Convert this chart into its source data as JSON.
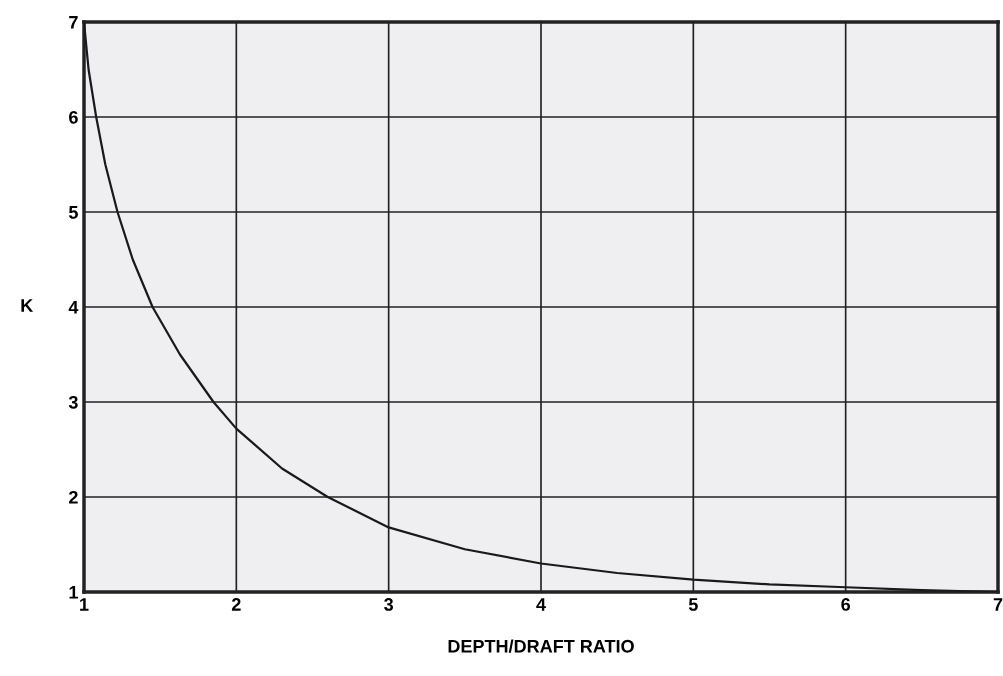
{
  "chart_data": {
    "type": "line",
    "xlabel": "DEPTH/DRAFT RATIO",
    "ylabel": "K",
    "x": [
      1,
      1.03,
      1.08,
      1.14,
      1.22,
      1.32,
      1.45,
      1.63,
      1.85,
      2,
      2.3,
      2.6,
      3,
      3.5,
      4,
      4.5,
      5,
      5.5,
      6,
      6.5,
      7
    ],
    "series": [
      {
        "color": "#1a1a1a",
        "values": [
          7,
          6.5,
          6,
          5.5,
          5,
          4.5,
          4,
          3.5,
          3,
          2.72,
          2.3,
          2.0,
          1.68,
          1.45,
          1.3,
          1.2,
          1.13,
          1.08,
          1.05,
          1.02,
          1.0
        ]
      }
    ],
    "xlim": [
      1,
      7
    ],
    "ylim": [
      1,
      7
    ],
    "xticks": [
      1,
      2,
      3,
      4,
      5,
      6,
      7
    ],
    "yticks": [
      1,
      2,
      3,
      4,
      5,
      6,
      7
    ],
    "grid": true,
    "marker": "none",
    "line_style": "solid"
  }
}
